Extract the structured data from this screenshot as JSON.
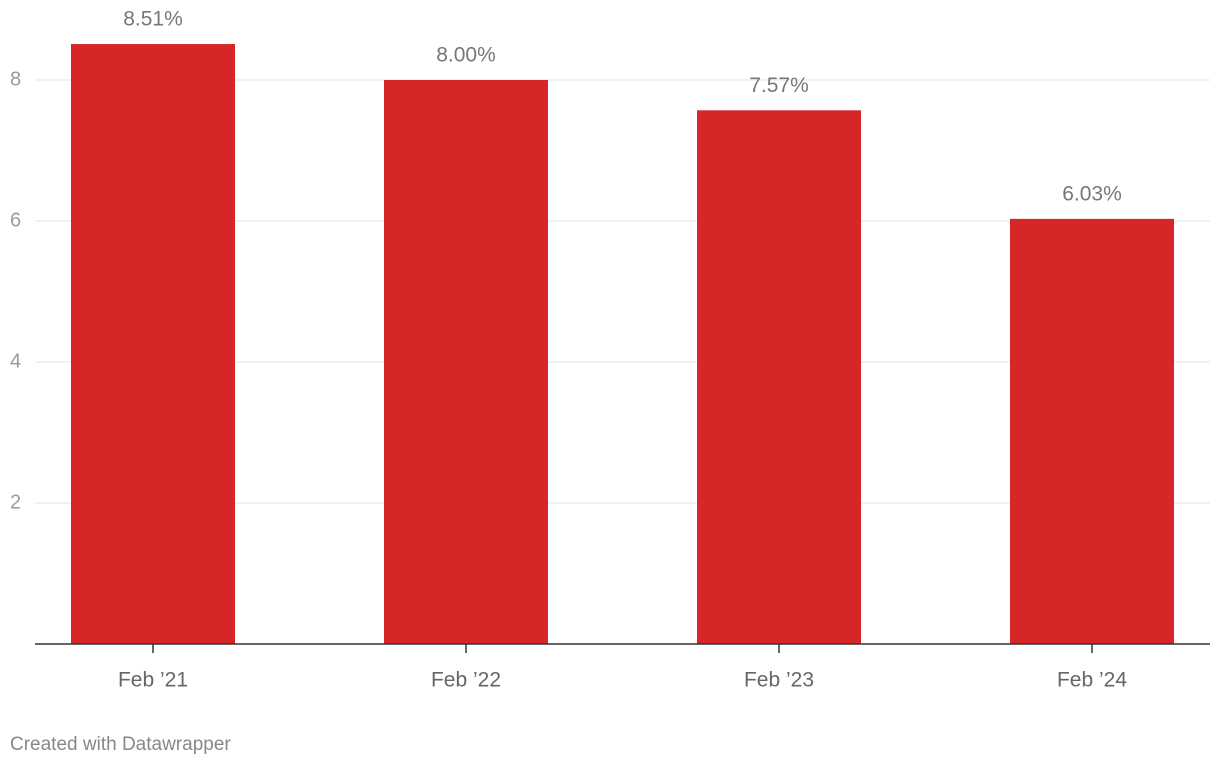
{
  "chart_data": {
    "type": "bar",
    "categories": [
      "Feb ’21",
      "Feb ’22",
      "Feb ’23",
      "Feb ’24"
    ],
    "values": [
      8.51,
      8.0,
      7.57,
      6.03
    ],
    "value_labels": [
      "8.51%",
      "8.00%",
      "7.57%",
      "6.03%"
    ],
    "color": "#d62628",
    "ylim": [
      0,
      9
    ],
    "yticks": [
      2,
      4,
      6,
      8
    ],
    "grid": true,
    "footer": "Created with Datawrapper"
  }
}
